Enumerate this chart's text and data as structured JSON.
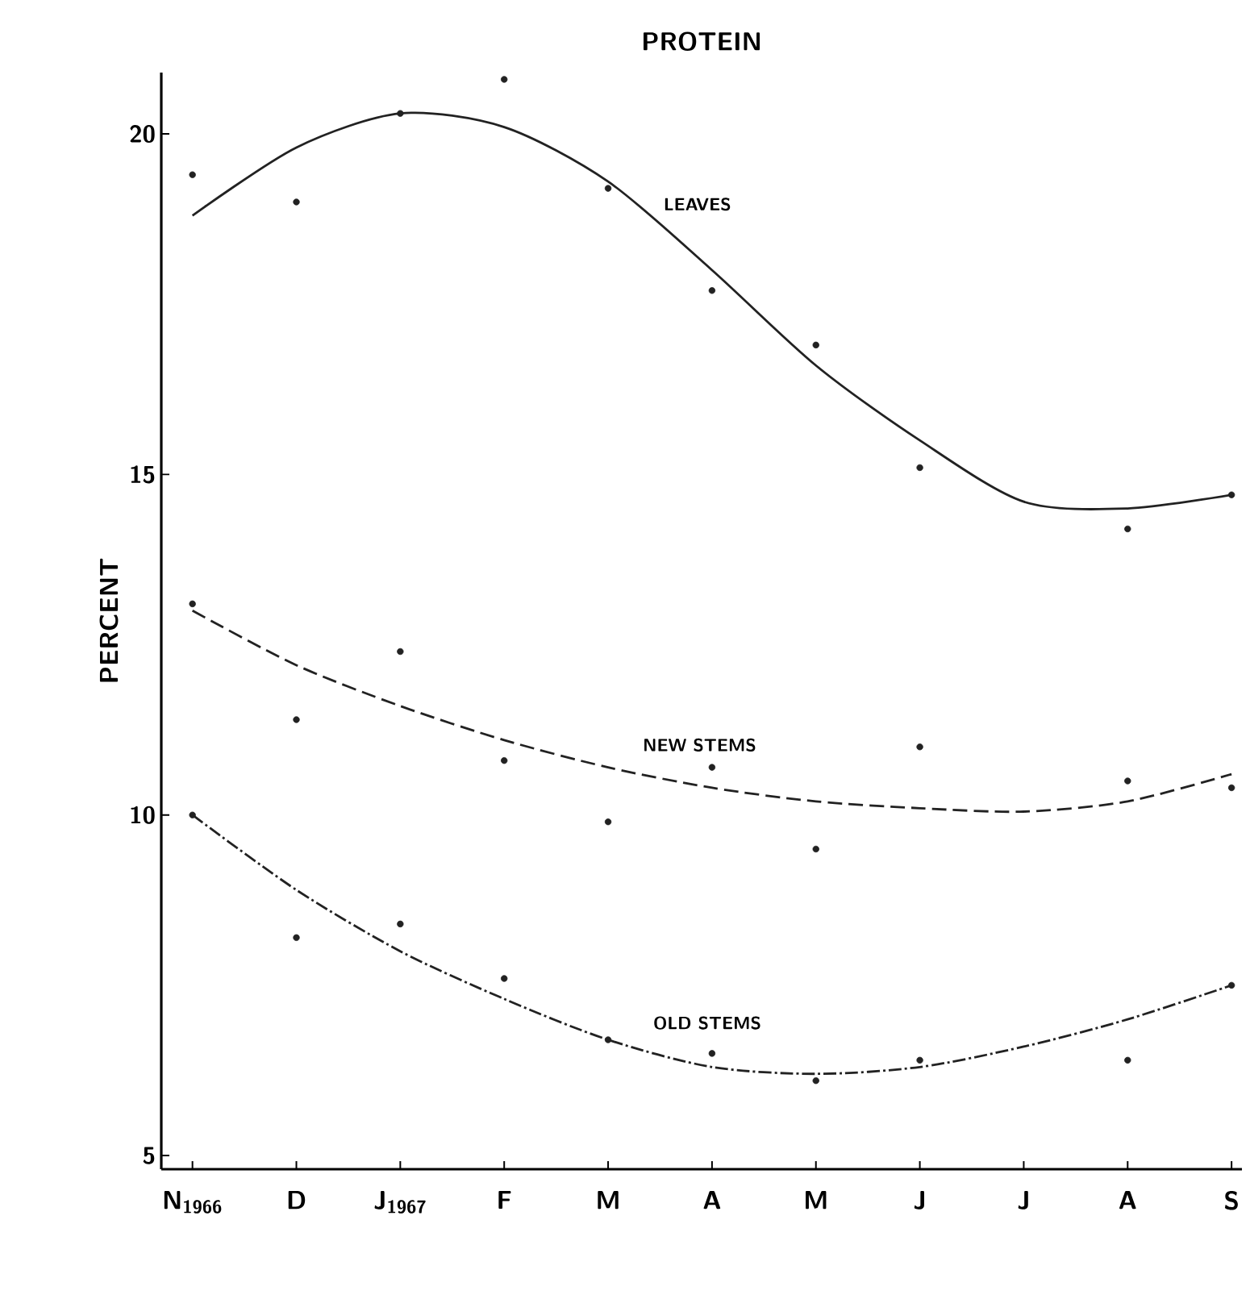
{
  "chart_data": {
    "type": "line",
    "title": "PROTEIN",
    "ylabel": "PERCENT",
    "categories": [
      "N$_{1966}$",
      "D",
      "J$_{1967}$",
      "F",
      "M",
      "A",
      "M",
      "J",
      "J",
      "A",
      "S"
    ],
    "ylim": [
      4.8,
      20.9
    ],
    "yticks": [
      5,
      10,
      15,
      20
    ],
    "grid": false,
    "marker": "none",
    "series": [
      {
        "name": "LEAVES",
        "color": "#222222",
        "line_style": "solid",
        "values": [
          18.8,
          19.8,
          20.3,
          20.1,
          19.3,
          18.0,
          16.6,
          15.5,
          14.6,
          14.5,
          14.7
        ]
      },
      {
        "name": "NEW STEMS",
        "color": "#222222",
        "line_style": "dashed",
        "values": [
          13.0,
          12.2,
          11.6,
          11.1,
          10.7,
          10.4,
          10.2,
          10.1,
          10.05,
          10.2,
          10.6
        ]
      },
      {
        "name": "OLD STEMS",
        "color": "#222222",
        "line_style": "dashdot",
        "values": [
          10.0,
          8.9,
          8.0,
          7.3,
          6.7,
          6.3,
          6.2,
          6.3,
          6.6,
          7.0,
          7.5
        ]
      },
      {
        "type": "scatter",
        "color": "#222222",
        "values": [
          19.4,
          19.0,
          20.3,
          20.8,
          19.2,
          17.7,
          16.9,
          15.1,
          null,
          14.2,
          14.7
        ]
      },
      {
        "type": "scatter",
        "color": "#222222",
        "values": [
          13.1,
          11.4,
          12.4,
          10.8,
          9.9,
          10.7,
          9.5,
          11.0,
          null,
          10.5,
          10.4
        ]
      },
      {
        "type": "scatter",
        "color": "#222222",
        "values": [
          10.0,
          8.2,
          8.4,
          7.6,
          6.7,
          6.5,
          6.1,
          6.4,
          null,
          6.4,
          7.5
        ]
      }
    ]
  }
}
